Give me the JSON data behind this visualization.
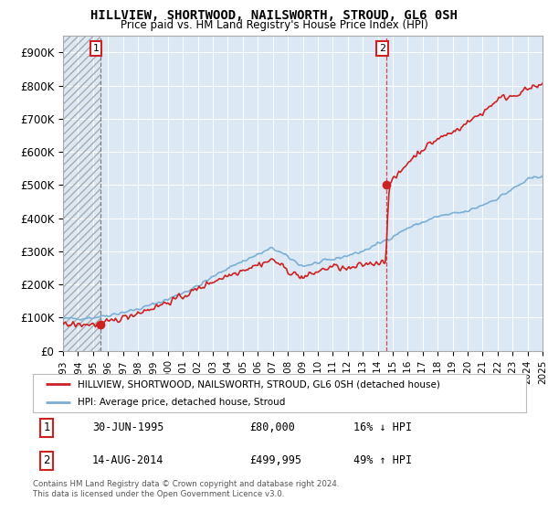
{
  "title": "HILLVIEW, SHORTWOOD, NAILSWORTH, STROUD, GL6 0SH",
  "subtitle": "Price paid vs. HM Land Registry's House Price Index (HPI)",
  "legend_line1": "HILLVIEW, SHORTWOOD, NAILSWORTH, STROUD, GL6 0SH (detached house)",
  "legend_line2": "HPI: Average price, detached house, Stroud",
  "annotation1_date": "30-JUN-1995",
  "annotation1_price": "£80,000",
  "annotation1_hpi": "16% ↓ HPI",
  "annotation2_date": "14-AUG-2014",
  "annotation2_price": "£499,995",
  "annotation2_hpi": "49% ↑ HPI",
  "footer": "Contains HM Land Registry data © Crown copyright and database right 2024.\nThis data is licensed under the Open Government Licence v3.0.",
  "xmin": 1993,
  "xmax": 2025,
  "ymin": 0,
  "ymax": 950000,
  "yticks": [
    0,
    100000,
    200000,
    300000,
    400000,
    500000,
    600000,
    700000,
    800000,
    900000
  ],
  "ytick_labels": [
    "£0",
    "£100K",
    "£200K",
    "£300K",
    "£400K",
    "£500K",
    "£600K",
    "£700K",
    "£800K",
    "£900K"
  ],
  "hpi_color": "#7bafd4",
  "price_color": "#cc2222",
  "sale1_x": 1995.5,
  "sale1_y": 80000,
  "sale2_x": 2014.6,
  "sale2_y": 499995,
  "plot_bg": "#dce9f5",
  "fig_bg": "#ffffff",
  "grid_color": "#ffffff",
  "vline1_color": "#666666",
  "vline2_color": "#cc2222"
}
